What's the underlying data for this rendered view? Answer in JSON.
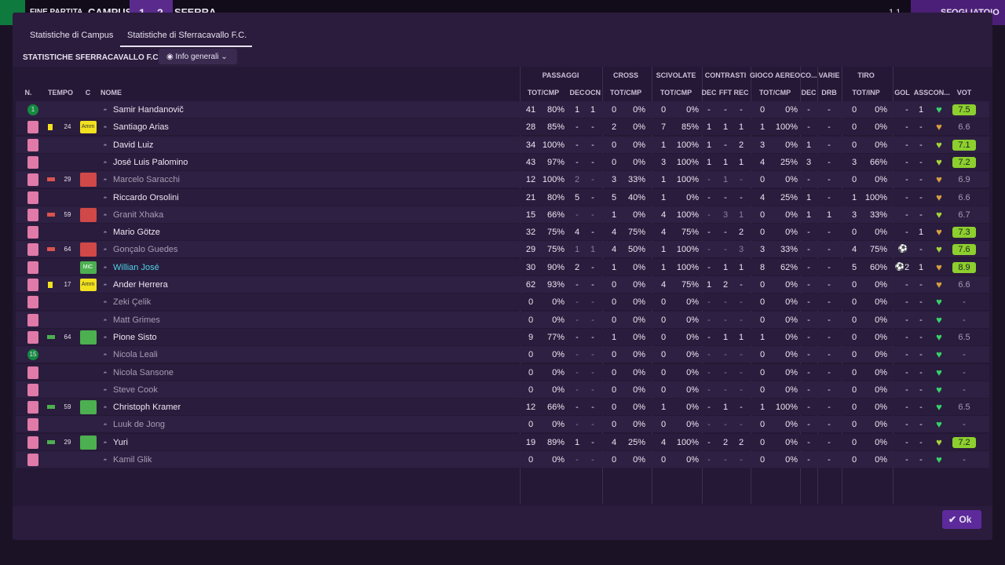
{
  "topbar": {
    "label": "FINE PARTITA",
    "home": "CAMPUS",
    "score_home": "1",
    "score_away": "2",
    "away": "SFERRA",
    "right_score": "1 1",
    "right_button": "SFOGLIATOIO"
  },
  "tabs": [
    "Statistiche di Campus",
    "Statistiche di Sferracavallo F.C."
  ],
  "section_title": "STATISTICHE SFERRACAVALLO F.C.",
  "dropdown": "Info generali",
  "groups": [
    "PASSAGGI",
    "CROSS",
    "SCIVOLATE",
    "CONTRASTI",
    "GIOCO AEREO",
    "CO...",
    "VARIE",
    "TIRO"
  ],
  "columns": [
    "N.",
    "TEMPO",
    "C",
    "NOME",
    "TOT/CMP",
    "DEC",
    "OCN",
    "TOT/CMP",
    "TOT/CMP",
    "DEC",
    "FFT",
    "REC",
    "TOT/CMP",
    "DEC",
    "DRB",
    "TOT/INP",
    "GOL",
    "ASS",
    "CON...",
    "VOT"
  ],
  "rows": [
    {
      "n": "1",
      "name": "Samir Handanovič",
      "heart": "#36d46a",
      "stats": [
        "41",
        "80%",
        "1",
        "1",
        "0",
        "0%",
        "0",
        "0%",
        "-",
        "-",
        "-",
        "0",
        "0%",
        "-",
        "-",
        "0",
        "0%",
        "-",
        "1",
        "7.5"
      ]
    },
    {
      "card": "yellow",
      "min": "24",
      "badge": "Amm",
      "name": "Santiago Arias",
      "heart": "#d9a040",
      "stats": [
        "28",
        "85%",
        "-",
        "-",
        "2",
        "0%",
        "7",
        "85%",
        "1",
        "1",
        "1",
        "1",
        "100%",
        "-",
        "-",
        "0",
        "0%",
        "-",
        "-",
        "6.6"
      ]
    },
    {
      "name": "David Luiz",
      "heart": "#a6d43a",
      "stats": [
        "34",
        "100%",
        "-",
        "-",
        "0",
        "0%",
        "1",
        "100%",
        "1",
        "-",
        "2",
        "3",
        "0%",
        "1",
        "-",
        "0",
        "0%",
        "-",
        "-",
        "7.1"
      ]
    },
    {
      "name": "José Luis Palomino",
      "heart": "#a6d43a",
      "stats": [
        "43",
        "97%",
        "-",
        "-",
        "0",
        "0%",
        "3",
        "100%",
        "1",
        "1",
        "1",
        "4",
        "25%",
        "3",
        "-",
        "3",
        "66%",
        "-",
        "-",
        "7.2"
      ]
    },
    {
      "sub": "off",
      "min": "29",
      "name": "Marcelo Saracchi",
      "dim": true,
      "heart": "#d9a040",
      "stats": [
        "12",
        "100%",
        "2",
        "-",
        "3",
        "33%",
        "1",
        "100%",
        "-",
        "1",
        "-",
        "0",
        "0%",
        "-",
        "-",
        "0",
        "0%",
        "-",
        "-",
        "6.9"
      ]
    },
    {
      "name": "Riccardo Orsolini",
      "heart": "#d9a040",
      "stats": [
        "21",
        "80%",
        "5",
        "-",
        "5",
        "40%",
        "1",
        "0%",
        "-",
        "-",
        "-",
        "4",
        "25%",
        "1",
        "-",
        "1",
        "100%",
        "-",
        "-",
        "6.6"
      ]
    },
    {
      "sub": "off",
      "min": "59",
      "name": "Granit Xhaka",
      "dim": true,
      "heart": "#a6d43a",
      "stats": [
        "15",
        "66%",
        "-",
        "-",
        "1",
        "0%",
        "4",
        "100%",
        "-",
        "3",
        "1",
        "0",
        "0%",
        "1",
        "1",
        "3",
        "33%",
        "-",
        "-",
        "6.7"
      ]
    },
    {
      "name": "Mario Götze",
      "heart": "#d9a040",
      "stats": [
        "32",
        "75%",
        "4",
        "-",
        "4",
        "75%",
        "4",
        "75%",
        "-",
        "-",
        "2",
        "0",
        "0%",
        "-",
        "-",
        "0",
        "0%",
        "-",
        "1",
        "7.3"
      ]
    },
    {
      "sub": "off",
      "min": "64",
      "name": "Gonçalo Guedes",
      "dim": true,
      "goal": true,
      "heart": "#a6d43a",
      "stats": [
        "29",
        "75%",
        "1",
        "1",
        "4",
        "50%",
        "1",
        "100%",
        "-",
        "-",
        "3",
        "3",
        "33%",
        "-",
        "-",
        "4",
        "75%",
        null,
        "-",
        "7.6"
      ]
    },
    {
      "badge": "MiC",
      "name": "Willian José",
      "star": true,
      "goal": true,
      "heart": "#d9a040",
      "stats": [
        "30",
        "90%",
        "2",
        "-",
        "1",
        "0%",
        "1",
        "100%",
        "-",
        "1",
        "1",
        "8",
        "62%",
        "-",
        "-",
        "5",
        "60%",
        "2",
        "1",
        "8.9"
      ]
    },
    {
      "card": "yellow",
      "min": "17",
      "badge": "Amm",
      "name": "Ander Herrera",
      "heart": "#d9a040",
      "stats": [
        "62",
        "93%",
        "-",
        "-",
        "0",
        "0%",
        "4",
        "75%",
        "1",
        "2",
        "-",
        "0",
        "0%",
        "-",
        "-",
        "0",
        "0%",
        "-",
        "-",
        "6.6"
      ]
    },
    {
      "name": "Zeki Çelik",
      "dim": true,
      "heart": "#36d46a",
      "stats": [
        "0",
        "0%",
        "-",
        "-",
        "0",
        "0%",
        "0",
        "0%",
        "-",
        "-",
        "-",
        "0",
        "0%",
        "-",
        "-",
        "0",
        "0%",
        "-",
        "-",
        "-"
      ]
    },
    {
      "name": "Matt Grimes",
      "dim": true,
      "heart": "#36d46a",
      "stats": [
        "0",
        "0%",
        "-",
        "-",
        "0",
        "0%",
        "0",
        "0%",
        "-",
        "-",
        "-",
        "0",
        "0%",
        "-",
        "-",
        "0",
        "0%",
        "-",
        "-",
        "-"
      ]
    },
    {
      "sub": "on",
      "min": "64",
      "name": "Pione Sisto",
      "heart": "#36d46a",
      "stats": [
        "9",
        "77%",
        "-",
        "-",
        "1",
        "0%",
        "0",
        "0%",
        "-",
        "1",
        "1",
        "1",
        "0%",
        "-",
        "-",
        "0",
        "0%",
        "-",
        "-",
        "6.5"
      ]
    },
    {
      "n": "15",
      "name": "Nicola Leali",
      "dim": true,
      "heart": "#36d46a",
      "stats": [
        "0",
        "0%",
        "-",
        "-",
        "0",
        "0%",
        "0",
        "0%",
        "-",
        "-",
        "-",
        "0",
        "0%",
        "-",
        "-",
        "0",
        "0%",
        "-",
        "-",
        "-"
      ]
    },
    {
      "name": "Nicola Sansone",
      "dim": true,
      "heart": "#36d46a",
      "stats": [
        "0",
        "0%",
        "-",
        "-",
        "0",
        "0%",
        "0",
        "0%",
        "-",
        "-",
        "-",
        "0",
        "0%",
        "-",
        "-",
        "0",
        "0%",
        "-",
        "-",
        "-"
      ]
    },
    {
      "name": "Steve Cook",
      "dim": true,
      "heart": "#36d46a",
      "stats": [
        "0",
        "0%",
        "-",
        "-",
        "0",
        "0%",
        "0",
        "0%",
        "-",
        "-",
        "-",
        "0",
        "0%",
        "-",
        "-",
        "0",
        "0%",
        "-",
        "-",
        "-"
      ]
    },
    {
      "sub": "on",
      "min": "59",
      "name": "Christoph Kramer",
      "heart": "#36d46a",
      "stats": [
        "12",
        "66%",
        "-",
        "-",
        "0",
        "0%",
        "1",
        "0%",
        "-",
        "1",
        "-",
        "1",
        "100%",
        "-",
        "-",
        "0",
        "0%",
        "-",
        "-",
        "6.5"
      ]
    },
    {
      "name": "Luuk de Jong",
      "dim": true,
      "heart": "#36d46a",
      "stats": [
        "0",
        "0%",
        "-",
        "-",
        "0",
        "0%",
        "0",
        "0%",
        "-",
        "-",
        "-",
        "0",
        "0%",
        "-",
        "-",
        "0",
        "0%",
        "-",
        "-",
        "-"
      ]
    },
    {
      "sub": "on",
      "min": "29",
      "name": "Yuri",
      "heart": "#a6d43a",
      "stats": [
        "19",
        "89%",
        "1",
        "-",
        "4",
        "25%",
        "4",
        "100%",
        "-",
        "2",
        "2",
        "0",
        "0%",
        "-",
        "-",
        "0",
        "0%",
        "-",
        "-",
        "7.2"
      ]
    },
    {
      "name": "Kamil Glik",
      "dim": true,
      "heart": "#36d46a",
      "stats": [
        "0",
        "0%",
        "-",
        "-",
        "0",
        "0%",
        "0",
        "0%",
        "-",
        "-",
        "-",
        "0",
        "0%",
        "-",
        "-",
        "0",
        "0%",
        "-",
        "-",
        "-"
      ]
    }
  ],
  "ok_button": "Ok"
}
